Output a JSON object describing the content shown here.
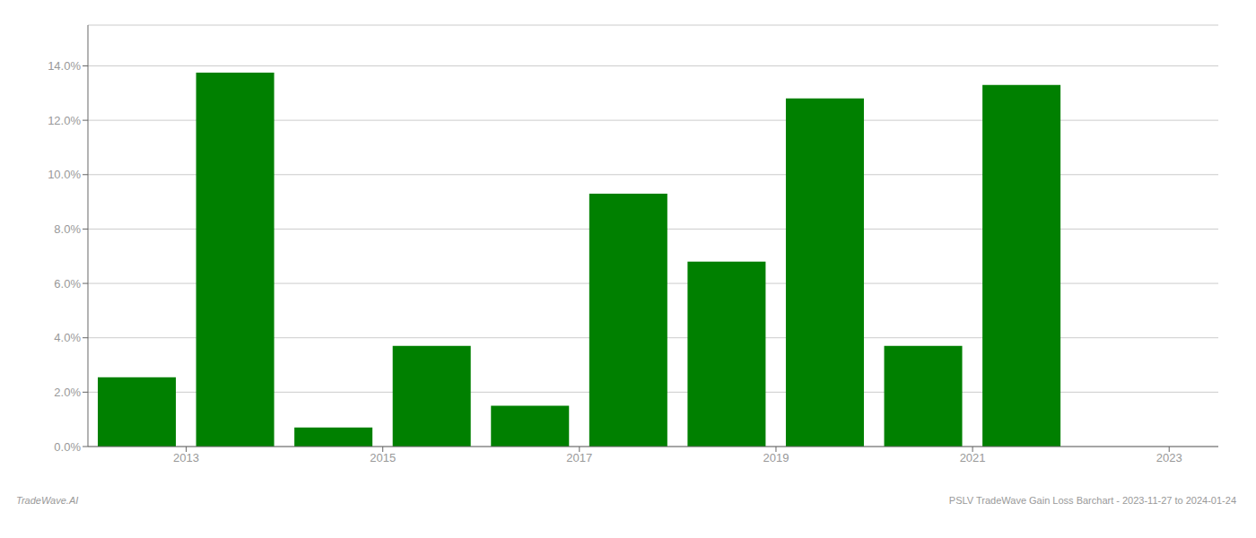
{
  "chart_data": {
    "type": "bar",
    "x": [
      2012.5,
      2013.5,
      2014.5,
      2015.5,
      2016.5,
      2017.5,
      2018.5,
      2019.5,
      2020.5,
      2021.5
    ],
    "values": [
      0.0255,
      0.1375,
      0.007,
      0.037,
      0.015,
      0.093,
      0.068,
      0.128,
      0.037,
      0.133
    ],
    "color": "#008000",
    "xlim": [
      2012.0,
      2023.5
    ],
    "xticks": [
      2013,
      2015,
      2017,
      2019,
      2021,
      2023
    ],
    "ylim": [
      0,
      0.155
    ],
    "yticks": [
      {
        "value": 0.0,
        "label": "0.0%"
      },
      {
        "value": 0.02,
        "label": "2.0%"
      },
      {
        "value": 0.04,
        "label": "4.0%"
      },
      {
        "value": 0.06,
        "label": "6.0%"
      },
      {
        "value": 0.08,
        "label": "8.0%"
      },
      {
        "value": 0.1,
        "label": "10.0%"
      },
      {
        "value": 0.12,
        "label": "12.0%"
      },
      {
        "value": 0.14,
        "label": "14.0%"
      }
    ],
    "grid": true,
    "annotations": [
      "TradeWave.AI",
      "PSLV TradeWave Gain Loss Barchart - 2023-11-27 to 2024-01-24"
    ]
  }
}
